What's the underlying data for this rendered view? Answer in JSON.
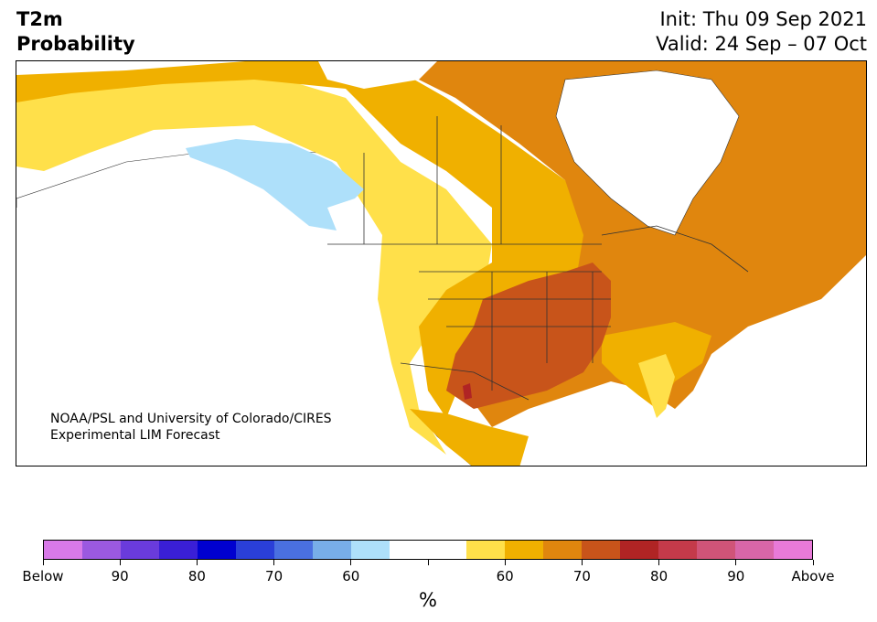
{
  "header": {
    "title_line1": "T2m",
    "title_line2": "Probability",
    "init_text": "Init: Thu 09 Sep 2021",
    "valid_text": "Valid: 24 Sep – 07 Oct"
  },
  "map": {
    "region": "North America",
    "credit_line1": "NOAA/PSL and University of Colorado/CIRES",
    "credit_line2": "Experimental LIM Forecast"
  },
  "colorbar": {
    "unit": "%",
    "colors": [
      "#d879e8",
      "#9b59e0",
      "#6a3bdc",
      "#3a1fd6",
      "#0000d0",
      "#2a3fd8",
      "#4a70e0",
      "#78aee8",
      "#aee0fa",
      "#ffffff",
      "#ffffff",
      "#ffe04a",
      "#f0b000",
      "#e0860e",
      "#c8541a",
      "#b02424",
      "#c43a4a",
      "#d05478",
      "#d866a8",
      "#e87ad8"
    ],
    "tick_labels": [
      "Below",
      "90",
      "80",
      "70",
      "60",
      "",
      "60",
      "70",
      "80",
      "90",
      "Above"
    ]
  }
}
